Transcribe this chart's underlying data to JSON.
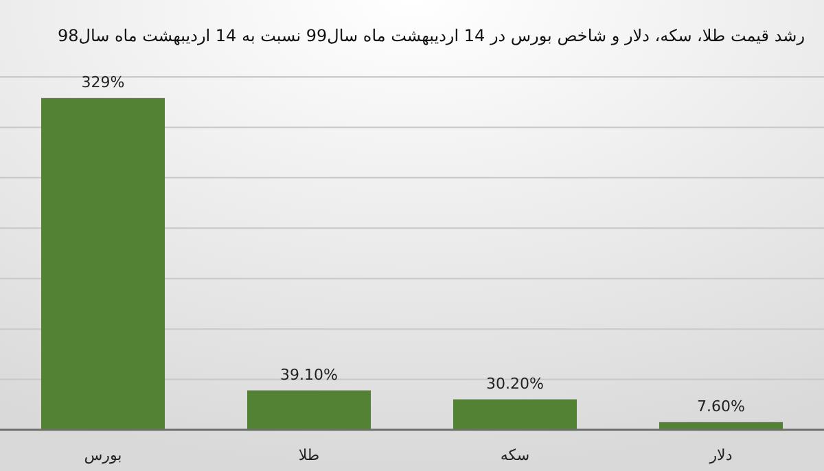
{
  "chart_data": {
    "type": "bar",
    "title": "رشد قیمت طلا، سکه، دلار و شاخص بورس در 14 اردیبهشت ماه سال99 نسبت به 14 اردیبهشت ماه سال98",
    "categories": [
      "بورس",
      "طلا",
      "سکه",
      "دلار"
    ],
    "values": [
      329,
      39.1,
      30.2,
      7.6
    ],
    "value_labels": [
      "329%",
      "39.10%",
      "30.20%",
      "7.60%"
    ],
    "color": "#548235",
    "ylim": [
      0,
      350
    ],
    "yticks": [
      {
        "value": 0,
        "label": null
      },
      {
        "value": 50,
        "label": null
      },
      {
        "value": 100,
        "label": null
      },
      {
        "value": 150,
        "label": null
      },
      {
        "value": 200,
        "label": null
      },
      {
        "value": 250,
        "label": null
      },
      {
        "value": 300,
        "label": null
      },
      {
        "value": 350,
        "label": null
      }
    ],
    "grid": "y",
    "tick_labels": "x"
  }
}
